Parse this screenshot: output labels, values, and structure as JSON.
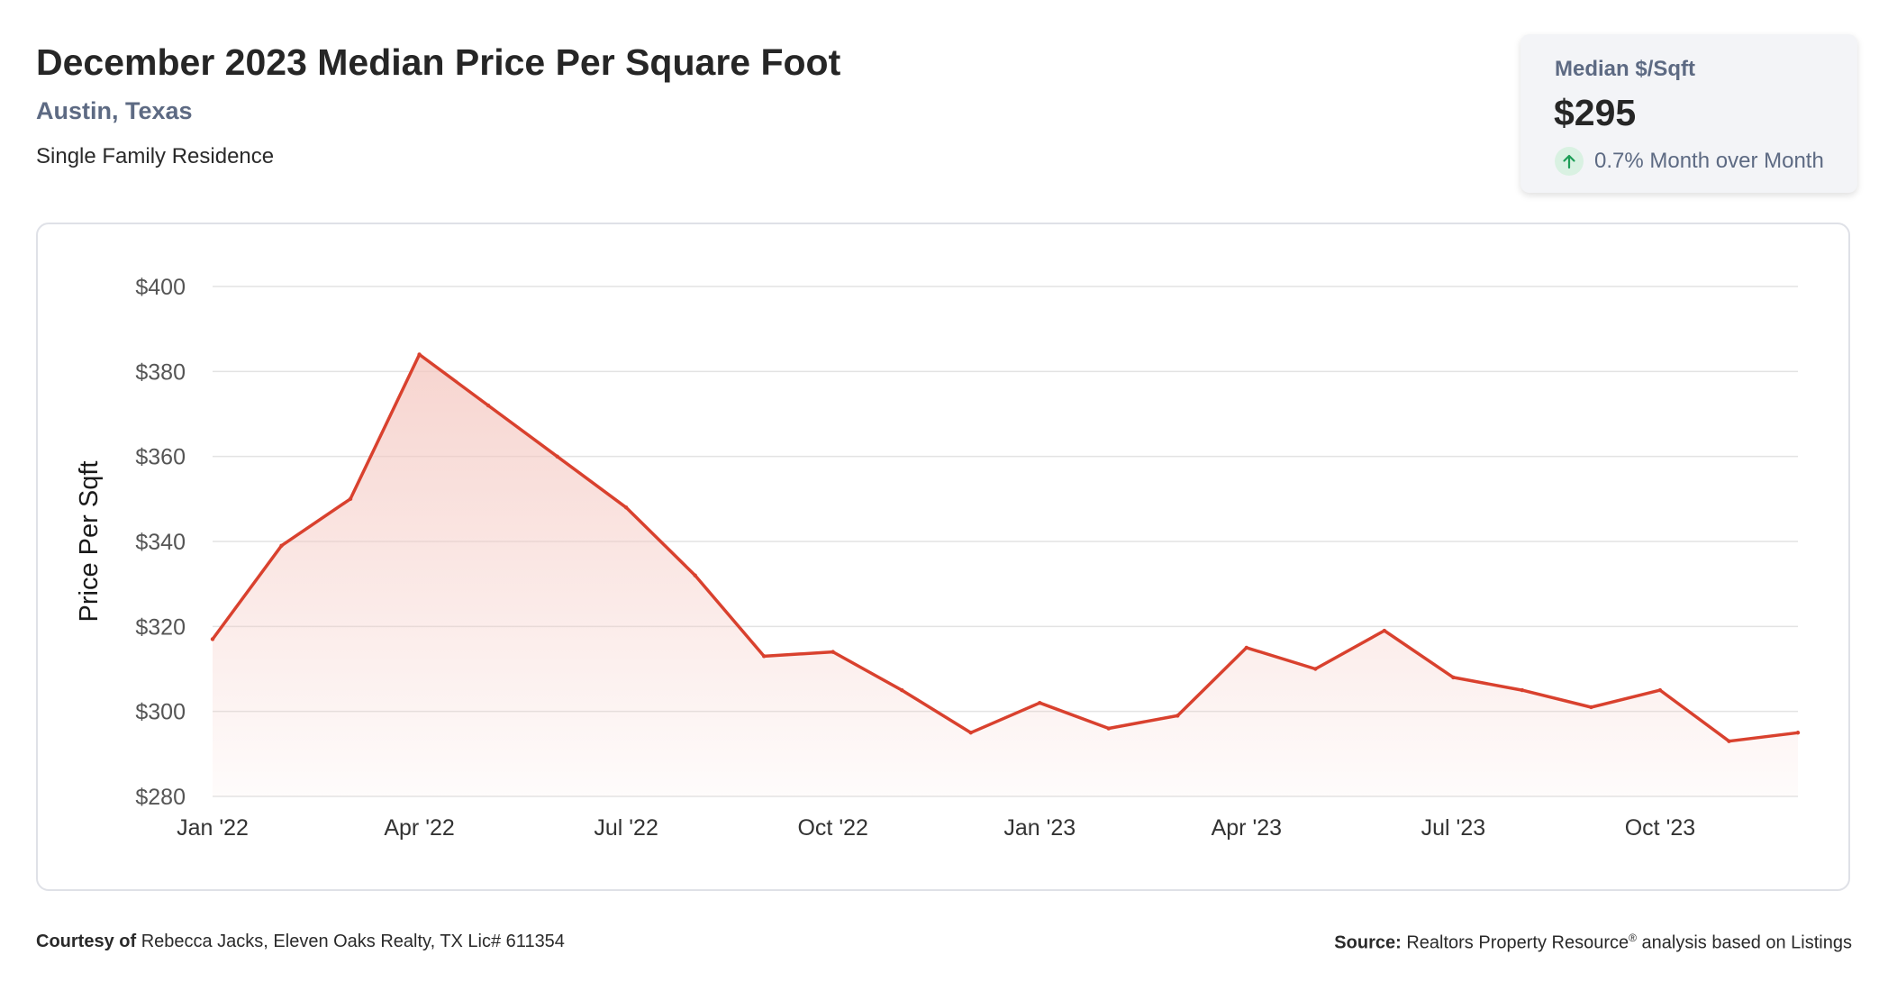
{
  "header": {
    "title": "December 2023 Median Price Per Square Foot",
    "location": "Austin, Texas",
    "property_type": "Single Family Residence"
  },
  "stat_card": {
    "label": "Median $/Sqft",
    "value": "$295",
    "change": "0.7% Month over Month",
    "change_icon": "arrow-up-icon",
    "change_color": "#1e9e57"
  },
  "footer": {
    "courtesy_label": "Courtesy of",
    "courtesy_text": "Rebecca Jacks, Eleven Oaks Realty, TX Lic# 611354",
    "source_label": "Source:",
    "source_text": "Realtors Property Resource",
    "source_sup": "®",
    "source_suffix": "analysis based on Listings"
  },
  "colors": {
    "line": "#d9412e",
    "fill": "#f4c6bf",
    "grid": "#e3e3e3",
    "accent_text": "#5d6a83"
  },
  "chart_data": {
    "type": "area",
    "ylabel": "Price Per Sqft",
    "xlabel": "",
    "ylim": [
      280,
      400
    ],
    "yticks": [
      400,
      380,
      360,
      340,
      320,
      300,
      280
    ],
    "ytick_labels": [
      "$400",
      "$380",
      "$360",
      "$340",
      "$320",
      "$300",
      "$280"
    ],
    "xtick_labels": [
      "Jan '22",
      "Apr '22",
      "Jul '22",
      "Oct '22",
      "Jan '23",
      "Apr '23",
      "Jul '23",
      "Oct '23"
    ],
    "xtick_indices": [
      0,
      3,
      6,
      9,
      12,
      15,
      18,
      21
    ],
    "grid": true,
    "legend": "none",
    "x": [
      "2022-01",
      "2022-02",
      "2022-03",
      "2022-04",
      "2022-05",
      "2022-06",
      "2022-07",
      "2022-08",
      "2022-09",
      "2022-10",
      "2022-11",
      "2022-12",
      "2023-01",
      "2023-02",
      "2023-03",
      "2023-04",
      "2023-05",
      "2023-06",
      "2023-07",
      "2023-08",
      "2023-09",
      "2023-10",
      "2023-11",
      "2023-12"
    ],
    "values": [
      317,
      339,
      350,
      384,
      372,
      360,
      348,
      332,
      313,
      314,
      305,
      295,
      302,
      296,
      299,
      315,
      310,
      319,
      308,
      305,
      301,
      305,
      293,
      295
    ]
  }
}
